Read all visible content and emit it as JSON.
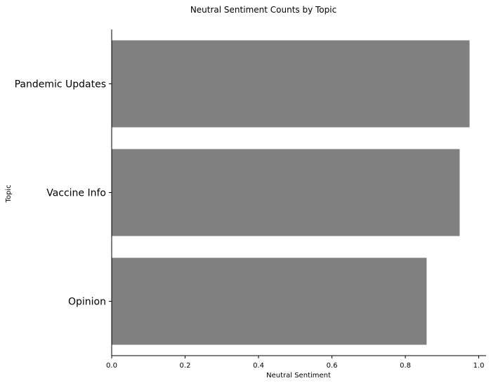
{
  "chart_data": {
    "type": "bar",
    "orientation": "horizontal",
    "title": "Neutral Sentiment Counts by Topic",
    "xlabel": "Neutral Sentiment",
    "ylabel": "Topic",
    "categories": [
      "Pandemic Updates",
      "Vaccine Info",
      "Opinion"
    ],
    "values": [
      0.975,
      0.948,
      0.858
    ],
    "xlim": [
      0,
      1.02
    ],
    "xticks": [
      0.0,
      0.2,
      0.4,
      0.6,
      0.8,
      1.0
    ],
    "xtick_labels": [
      "0.0",
      "0.2",
      "0.4",
      "0.6",
      "0.8",
      "1.0"
    ],
    "bar_color": "#808080",
    "grid": false,
    "legend": "none"
  }
}
